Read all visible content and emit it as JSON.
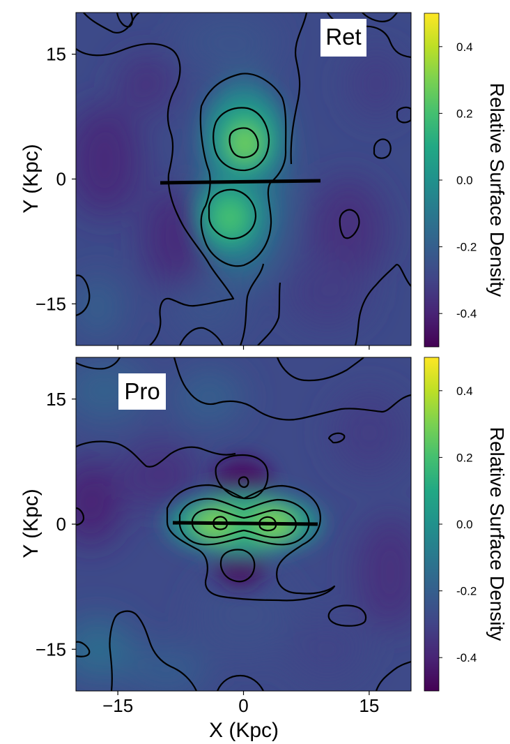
{
  "chart_data": [
    {
      "type": "heatmap",
      "panel_label": "Ret",
      "xlabel": "",
      "ylabel": "Y (Kpc)",
      "xlim": [
        -20,
        20
      ],
      "ylim": [
        -20,
        20
      ],
      "x_ticks": [
        -15,
        0,
        15
      ],
      "x_tick_labels": [
        "",
        "",
        ""
      ],
      "y_ticks": [
        15,
        0,
        -15
      ],
      "y_tick_labels": [
        "15",
        "0",
        "−15"
      ],
      "colorbar": {
        "label": "Relative Surface Density",
        "range": [
          -0.5,
          0.5
        ],
        "ticks": [
          0.4,
          0.2,
          0.0,
          -0.2,
          -0.4
        ],
        "tick_labels": [
          "0.4",
          "0.2",
          "0.0",
          "-0.2",
          "-0.4"
        ],
        "colormap": "viridis"
      },
      "bar_line": {
        "x": [
          -10,
          9
        ],
        "y": [
          0,
          0
        ]
      },
      "features": [
        {
          "kind": "overdensity",
          "x": 0.2,
          "y": 4.5,
          "peak": 0.24
        },
        {
          "kind": "overdensity",
          "x": -1.5,
          "y": -4.5,
          "peak": 0.18
        },
        {
          "kind": "underdensity",
          "x": -16,
          "y": 0,
          "peak": -0.35
        },
        {
          "kind": "underdensity",
          "x": 13,
          "y": -5,
          "peak": -0.33
        }
      ]
    },
    {
      "type": "heatmap",
      "panel_label": "Pro",
      "xlabel": "X (Kpc)",
      "ylabel": "Y (Kpc)",
      "xlim": [
        -20,
        20
      ],
      "ylim": [
        -20,
        20
      ],
      "x_ticks": [
        -15,
        0,
        15
      ],
      "x_tick_labels": [
        "−15",
        "0",
        "15"
      ],
      "y_ticks": [
        15,
        0,
        -15
      ],
      "y_tick_labels": [
        "15",
        "0",
        "−15"
      ],
      "colorbar": {
        "label": "Relative Surface Density",
        "range": [
          -0.5,
          0.5
        ],
        "ticks": [
          0.4,
          0.2,
          0.0,
          -0.2,
          -0.4
        ],
        "tick_labels": [
          "0.4",
          "0.2",
          "0.0",
          "-0.2",
          "-0.4"
        ],
        "colormap": "viridis"
      },
      "bar_line": {
        "x": [
          -8.5,
          8.5
        ],
        "y": [
          0,
          0
        ]
      },
      "features": [
        {
          "kind": "overdensity",
          "x": -3,
          "y": 0,
          "peak": 0.3
        },
        {
          "kind": "overdensity",
          "x": 3,
          "y": 0,
          "peak": 0.3
        },
        {
          "kind": "underdensity",
          "x": 0,
          "y": 5,
          "peak": -0.45
        },
        {
          "kind": "underdensity",
          "x": 0,
          "y": -5,
          "peak": -0.42
        }
      ]
    }
  ]
}
